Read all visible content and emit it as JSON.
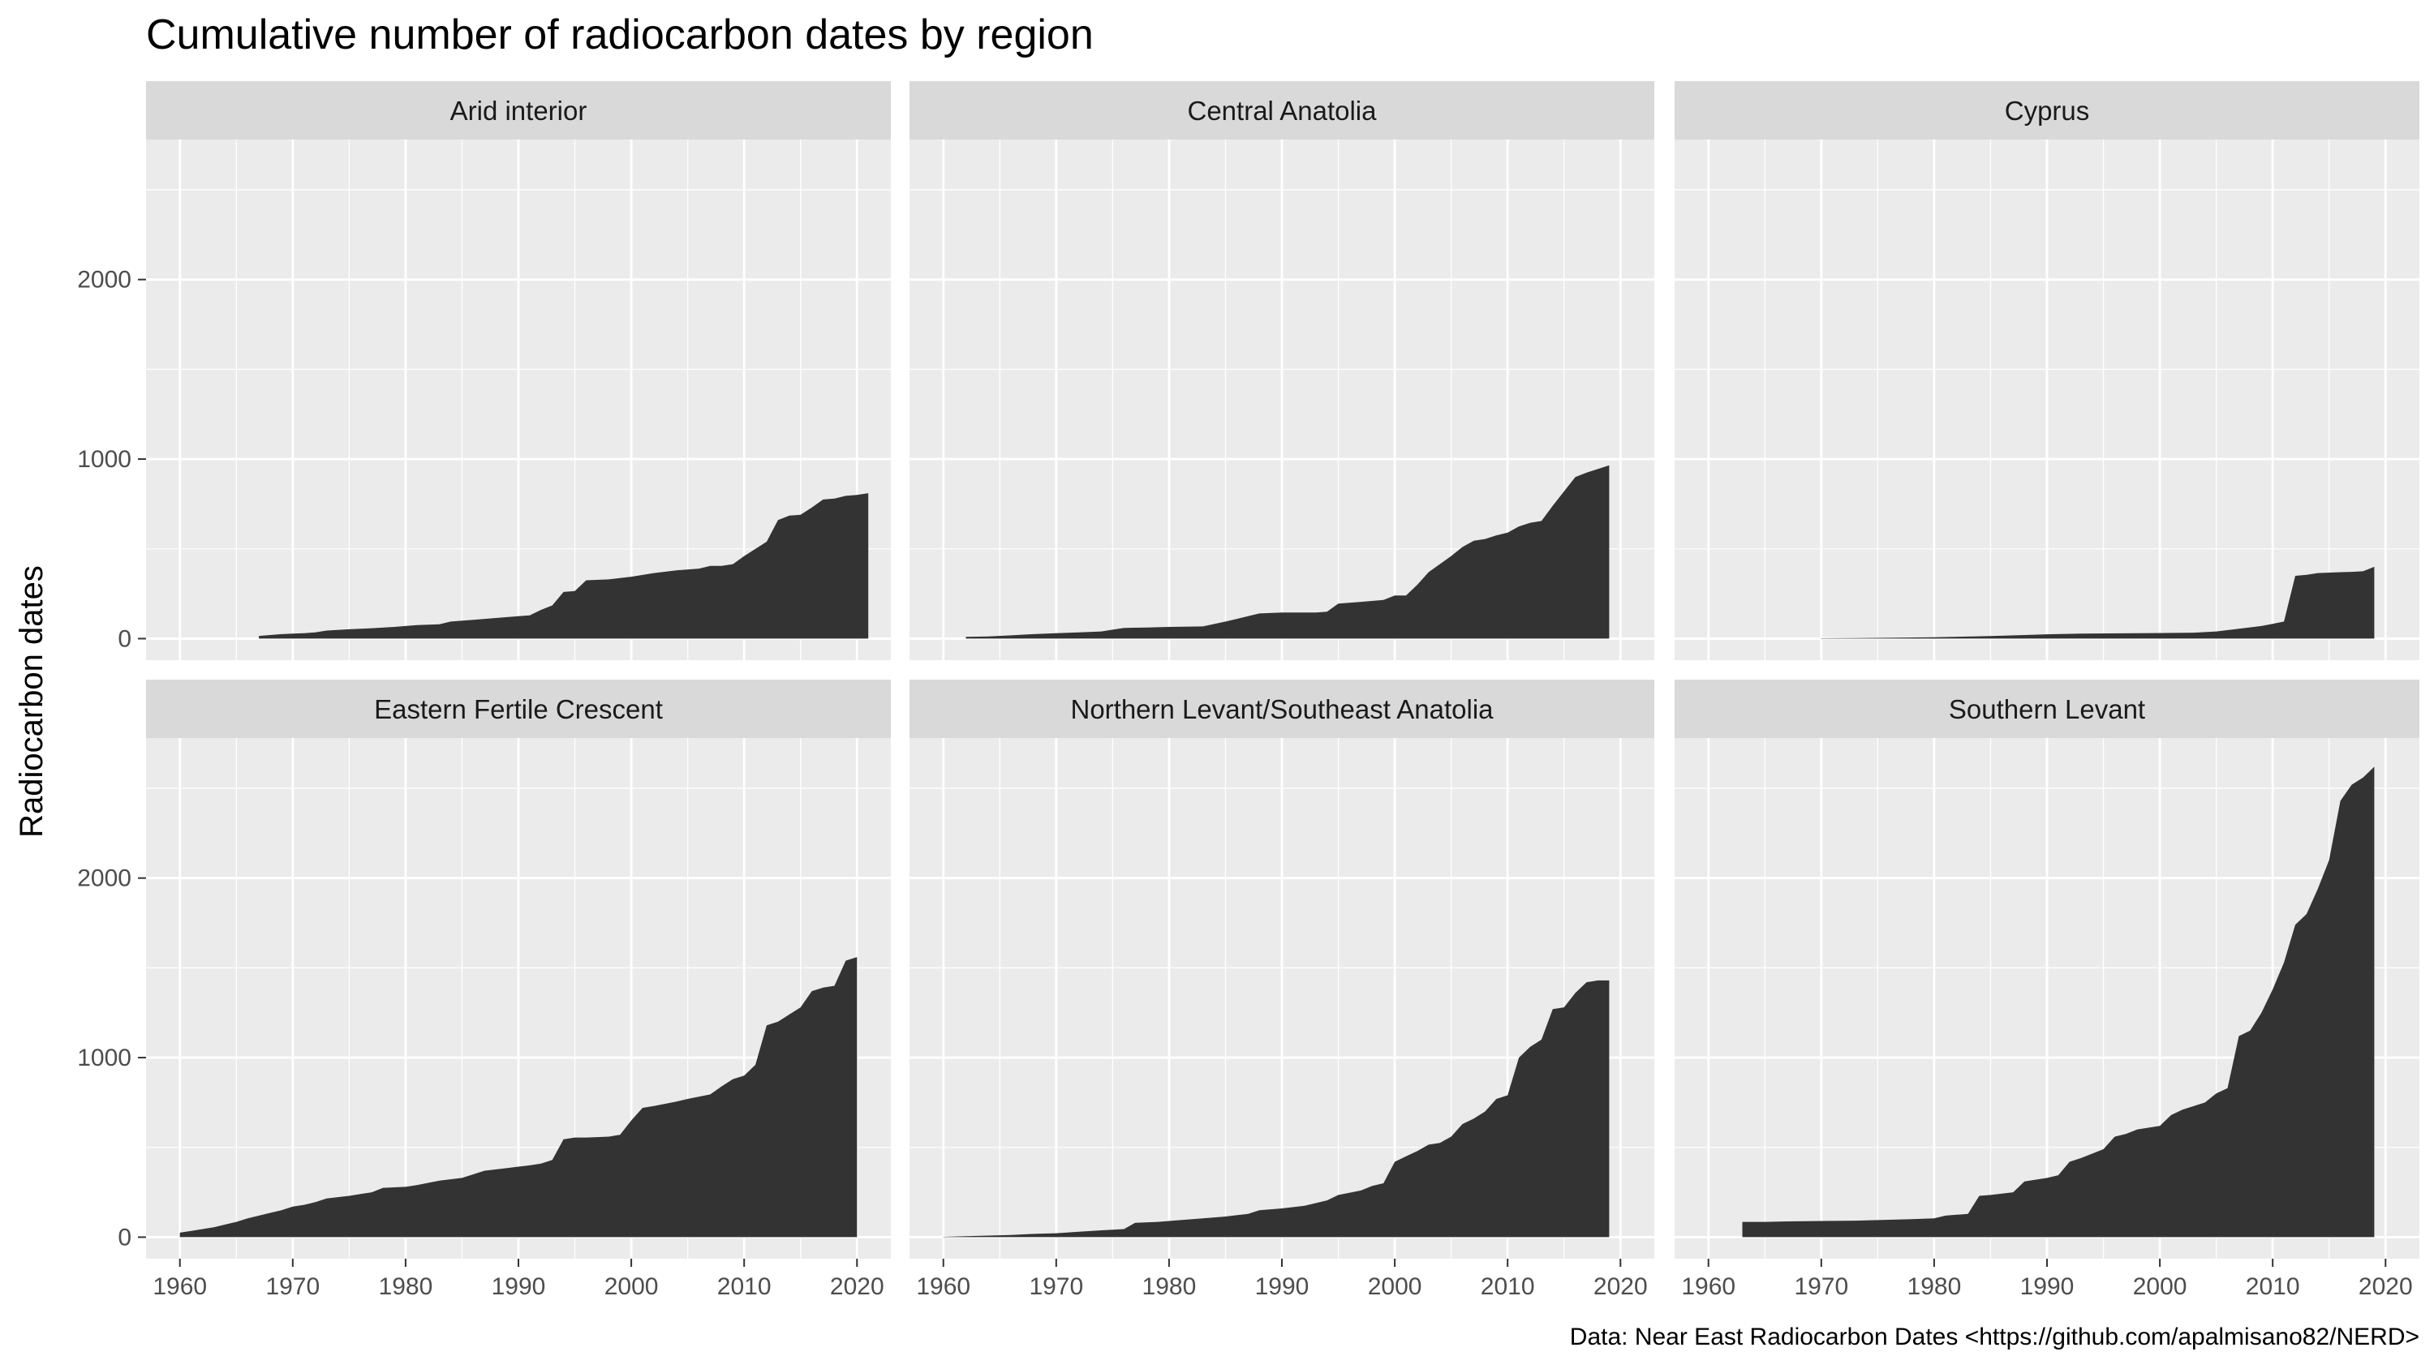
{
  "chart_data": {
    "type": "area",
    "title": "Cumulative number of radiocarbon dates by region",
    "ylabel": "Radiocarbon dates",
    "xlabel": "",
    "caption": "Data: Near East Radiocarbon Dates <https://github.com/apalmisano82/NERD>",
    "xlim": [
      1957,
      2023
    ],
    "ylim": [
      -120,
      2780
    ],
    "x_ticks": [
      1960,
      1970,
      1980,
      1990,
      2000,
      2010,
      2020
    ],
    "y_ticks": [
      0,
      1000,
      2000
    ],
    "grid": true,
    "colors": {
      "fill": "#333333",
      "panel_bg": "#ebebeb",
      "strip_bg": "#d9d9d9",
      "grid": "#ffffff"
    },
    "panels": [
      {
        "name": "Arid interior",
        "points": [
          [
            1967,
            15
          ],
          [
            1968,
            20
          ],
          [
            1969,
            25
          ],
          [
            1970,
            28
          ],
          [
            1971,
            30
          ],
          [
            1972,
            35
          ],
          [
            1973,
            45
          ],
          [
            1975,
            52
          ],
          [
            1977,
            58
          ],
          [
            1979,
            65
          ],
          [
            1981,
            75
          ],
          [
            1983,
            80
          ],
          [
            1984,
            95
          ],
          [
            1986,
            105
          ],
          [
            1988,
            115
          ],
          [
            1990,
            125
          ],
          [
            1991,
            130
          ],
          [
            1992,
            160
          ],
          [
            1993,
            185
          ],
          [
            1994,
            260
          ],
          [
            1995,
            265
          ],
          [
            1996,
            325
          ],
          [
            1998,
            330
          ],
          [
            2000,
            345
          ],
          [
            2002,
            365
          ],
          [
            2004,
            380
          ],
          [
            2006,
            390
          ],
          [
            2007,
            405
          ],
          [
            2008,
            405
          ],
          [
            2009,
            415
          ],
          [
            2010,
            460
          ],
          [
            2011,
            500
          ],
          [
            2012,
            540
          ],
          [
            2013,
            660
          ],
          [
            2014,
            685
          ],
          [
            2015,
            690
          ],
          [
            2016,
            730
          ],
          [
            2017,
            775
          ],
          [
            2018,
            780
          ],
          [
            2019,
            795
          ],
          [
            2020,
            800
          ],
          [
            2021,
            810
          ]
        ]
      },
      {
        "name": "Central Anatolia",
        "points": [
          [
            1962,
            10
          ],
          [
            1964,
            12
          ],
          [
            1966,
            18
          ],
          [
            1968,
            25
          ],
          [
            1970,
            30
          ],
          [
            1972,
            35
          ],
          [
            1974,
            40
          ],
          [
            1975,
            50
          ],
          [
            1976,
            60
          ],
          [
            1978,
            62
          ],
          [
            1980,
            65
          ],
          [
            1983,
            68
          ],
          [
            1985,
            95
          ],
          [
            1987,
            125
          ],
          [
            1988,
            140
          ],
          [
            1990,
            145
          ],
          [
            1993,
            145
          ],
          [
            1994,
            150
          ],
          [
            1995,
            195
          ],
          [
            1997,
            205
          ],
          [
            1999,
            215
          ],
          [
            2000,
            240
          ],
          [
            2001,
            240
          ],
          [
            2002,
            300
          ],
          [
            2003,
            370
          ],
          [
            2005,
            460
          ],
          [
            2006,
            510
          ],
          [
            2007,
            545
          ],
          [
            2008,
            555
          ],
          [
            2009,
            575
          ],
          [
            2010,
            590
          ],
          [
            2011,
            625
          ],
          [
            2012,
            645
          ],
          [
            2013,
            655
          ],
          [
            2014,
            740
          ],
          [
            2016,
            900
          ],
          [
            2017,
            925
          ],
          [
            2018,
            945
          ],
          [
            2019,
            965
          ]
        ]
      },
      {
        "name": "Cyprus",
        "points": [
          [
            1970,
            2
          ],
          [
            1975,
            4
          ],
          [
            1980,
            8
          ],
          [
            1985,
            14
          ],
          [
            1988,
            20
          ],
          [
            1990,
            24
          ],
          [
            1993,
            28
          ],
          [
            1998,
            30
          ],
          [
            2003,
            33
          ],
          [
            2005,
            40
          ],
          [
            2007,
            55
          ],
          [
            2009,
            70
          ],
          [
            2011,
            95
          ],
          [
            2012,
            350
          ],
          [
            2013,
            355
          ],
          [
            2014,
            365
          ],
          [
            2016,
            370
          ],
          [
            2017,
            372
          ],
          [
            2018,
            375
          ],
          [
            2019,
            400
          ]
        ]
      },
      {
        "name": "Eastern Fertile Crescent",
        "points": [
          [
            1960,
            25
          ],
          [
            1961,
            35
          ],
          [
            1962,
            45
          ],
          [
            1963,
            55
          ],
          [
            1964,
            70
          ],
          [
            1965,
            85
          ],
          [
            1966,
            105
          ],
          [
            1968,
            135
          ],
          [
            1969,
            150
          ],
          [
            1970,
            170
          ],
          [
            1971,
            180
          ],
          [
            1972,
            195
          ],
          [
            1973,
            215
          ],
          [
            1975,
            230
          ],
          [
            1976,
            240
          ],
          [
            1977,
            250
          ],
          [
            1978,
            275
          ],
          [
            1980,
            280
          ],
          [
            1981,
            290
          ],
          [
            1983,
            315
          ],
          [
            1985,
            330
          ],
          [
            1987,
            370
          ],
          [
            1989,
            385
          ],
          [
            1991,
            400
          ],
          [
            1992,
            410
          ],
          [
            1993,
            430
          ],
          [
            1994,
            545
          ],
          [
            1995,
            555
          ],
          [
            1996,
            555
          ],
          [
            1998,
            560
          ],
          [
            1999,
            570
          ],
          [
            2000,
            650
          ],
          [
            2001,
            720
          ],
          [
            2002,
            730
          ],
          [
            2004,
            755
          ],
          [
            2005,
            770
          ],
          [
            2007,
            795
          ],
          [
            2008,
            840
          ],
          [
            2009,
            880
          ],
          [
            2010,
            900
          ],
          [
            2011,
            960
          ],
          [
            2012,
            1180
          ],
          [
            2013,
            1200
          ],
          [
            2014,
            1240
          ],
          [
            2015,
            1280
          ],
          [
            2016,
            1370
          ],
          [
            2017,
            1390
          ],
          [
            2018,
            1400
          ],
          [
            2019,
            1540
          ],
          [
            2020,
            1560
          ]
        ]
      },
      {
        "name": "Northern Levant/Southeast Anatolia",
        "points": [
          [
            1960,
            2
          ],
          [
            1962,
            5
          ],
          [
            1966,
            12
          ],
          [
            1968,
            18
          ],
          [
            1970,
            22
          ],
          [
            1972,
            30
          ],
          [
            1974,
            38
          ],
          [
            1976,
            45
          ],
          [
            1977,
            80
          ],
          [
            1979,
            85
          ],
          [
            1981,
            95
          ],
          [
            1983,
            105
          ],
          [
            1985,
            115
          ],
          [
            1987,
            130
          ],
          [
            1988,
            150
          ],
          [
            1990,
            160
          ],
          [
            1992,
            175
          ],
          [
            1994,
            205
          ],
          [
            1995,
            235
          ],
          [
            1997,
            260
          ],
          [
            1998,
            285
          ],
          [
            1999,
            300
          ],
          [
            2000,
            420
          ],
          [
            2001,
            450
          ],
          [
            2002,
            480
          ],
          [
            2003,
            515
          ],
          [
            2004,
            525
          ],
          [
            2005,
            560
          ],
          [
            2006,
            630
          ],
          [
            2007,
            660
          ],
          [
            2008,
            700
          ],
          [
            2009,
            770
          ],
          [
            2010,
            790
          ],
          [
            2011,
            1000
          ],
          [
            2012,
            1060
          ],
          [
            2013,
            1100
          ],
          [
            2014,
            1270
          ],
          [
            2015,
            1280
          ],
          [
            2016,
            1360
          ],
          [
            2017,
            1420
          ],
          [
            2018,
            1430
          ],
          [
            2019,
            1430
          ]
        ]
      },
      {
        "name": "Southern Levant",
        "points": [
          [
            1963,
            85
          ],
          [
            1965,
            85
          ],
          [
            1967,
            88
          ],
          [
            1970,
            90
          ],
          [
            1973,
            92
          ],
          [
            1975,
            95
          ],
          [
            1978,
            100
          ],
          [
            1980,
            105
          ],
          [
            1981,
            120
          ],
          [
            1982,
            125
          ],
          [
            1983,
            130
          ],
          [
            1984,
            230
          ],
          [
            1985,
            235
          ],
          [
            1987,
            250
          ],
          [
            1988,
            310
          ],
          [
            1990,
            330
          ],
          [
            1991,
            345
          ],
          [
            1992,
            420
          ],
          [
            1993,
            440
          ],
          [
            1995,
            490
          ],
          [
            1996,
            560
          ],
          [
            1997,
            575
          ],
          [
            1998,
            600
          ],
          [
            2000,
            620
          ],
          [
            2001,
            680
          ],
          [
            2002,
            710
          ],
          [
            2004,
            750
          ],
          [
            2005,
            800
          ],
          [
            2006,
            830
          ],
          [
            2007,
            1120
          ],
          [
            2008,
            1150
          ],
          [
            2009,
            1250
          ],
          [
            2010,
            1380
          ],
          [
            2011,
            1530
          ],
          [
            2012,
            1740
          ],
          [
            2013,
            1800
          ],
          [
            2014,
            1940
          ],
          [
            2015,
            2100
          ],
          [
            2016,
            2430
          ],
          [
            2017,
            2520
          ],
          [
            2018,
            2560
          ],
          [
            2019,
            2620
          ]
        ]
      }
    ]
  }
}
